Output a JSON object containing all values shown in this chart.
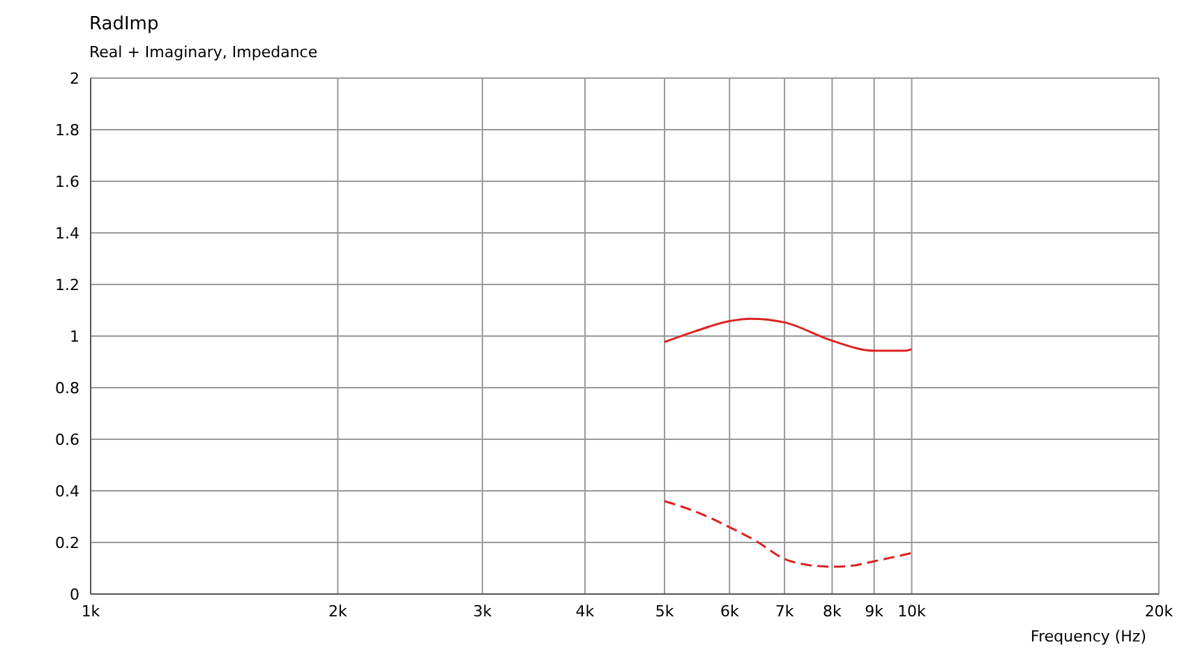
{
  "chart_data": {
    "type": "line",
    "title": "RadImp",
    "subtitle": "Real + Imaginary, Impedance",
    "xlabel": "Frequency  (Hz)",
    "log": "x",
    "grid": true,
    "marker": "none",
    "xlim": [
      1000,
      20000
    ],
    "xticks": [
      {
        "value": 1000,
        "label": "1k"
      },
      {
        "value": 2000,
        "label": "2k"
      },
      {
        "value": 3000,
        "label": "3k"
      },
      {
        "value": 4000,
        "label": "4k"
      },
      {
        "value": 5000,
        "label": "5k"
      },
      {
        "value": 6000,
        "label": "6k"
      },
      {
        "value": 7000,
        "label": "7k"
      },
      {
        "value": 8000,
        "label": "8k"
      },
      {
        "value": 9000,
        "label": "9k"
      },
      {
        "value": 10000,
        "label": "10k"
      },
      {
        "value": 20000,
        "label": "20k"
      }
    ],
    "ylim": [
      0,
      2
    ],
    "yticks": [
      0,
      0.2,
      0.4,
      0.6,
      0.8,
      1,
      1.2,
      1.4,
      1.6,
      1.8,
      2
    ],
    "series": [
      {
        "color": "#dd2222",
        "line_style": "solid",
        "x": [
          5000,
          5440,
          6000,
          6375,
          7000,
          8000,
          9000,
          9800,
          10000
        ],
        "values": [
          0.977,
          1.018,
          1.058,
          1.067,
          1.053,
          0.982,
          0.943,
          0.943,
          0.949
        ]
      },
      {
        "color": "#dd2222",
        "line_style": "dashed",
        "x": [
          5000,
          5440,
          6000,
          6460,
          7000,
          7470,
          8000,
          8415,
          9000,
          10000
        ],
        "values": [
          0.36,
          0.321,
          0.259,
          0.206,
          0.136,
          0.113,
          0.106,
          0.109,
          0.127,
          0.159
        ]
      }
    ]
  }
}
